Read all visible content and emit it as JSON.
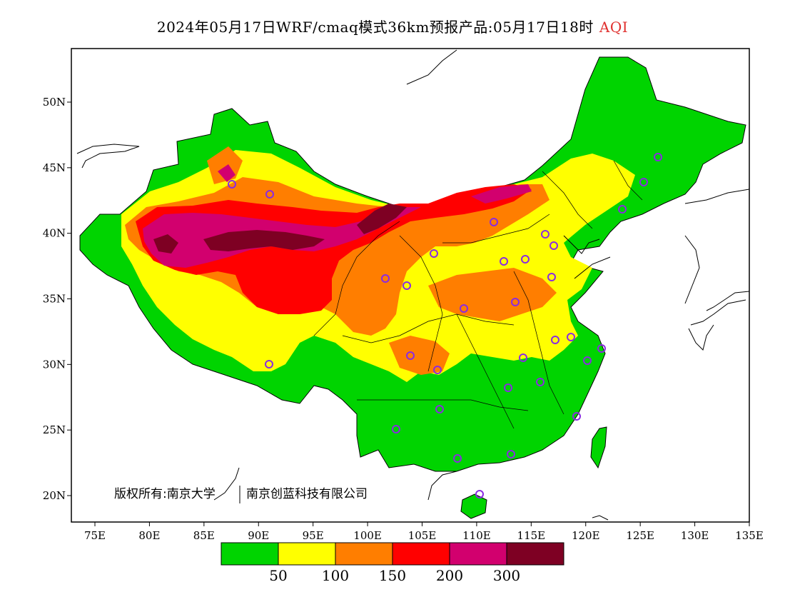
{
  "title": {
    "text": "2024年05月17日WRF/cmaq模式36km预报产品:05月17日18时",
    "variable": "AQI",
    "variable_color": "#e0302e"
  },
  "axes": {
    "lon_ticks": [
      "75E",
      "80E",
      "85E",
      "90E",
      "95E",
      "100E",
      "105E",
      "110E",
      "115E",
      "120E",
      "125E",
      "130E",
      "135E"
    ],
    "lat_ticks": [
      "50N",
      "45N",
      "40N",
      "35N",
      "30N",
      "25N",
      "20N"
    ],
    "lon_range": [
      73,
      135
    ],
    "lat_range": [
      18,
      54
    ]
  },
  "copyright": {
    "left": "版权所有:南京大学",
    "right": "南京创蓝科技有限公司"
  },
  "legend": {
    "colors": [
      "#00d400",
      "#ffff00",
      "#ff7e00",
      "#ff0000",
      "#d2006e",
      "#7e0023"
    ],
    "labels": [
      "50",
      "100",
      "150",
      "200",
      "300"
    ]
  }
}
